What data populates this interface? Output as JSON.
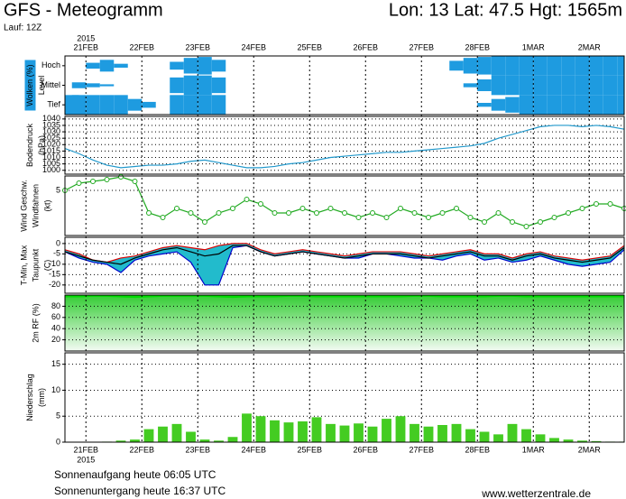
{
  "header": {
    "title": "GFS - Meteogramm",
    "location": "Lon: 13 Lat: 47.5 Hgt: 1565m",
    "run": "Lauf: 12Z"
  },
  "chart_data": {
    "type": "meteogram",
    "year": "2015",
    "x": [
      0,
      6,
      12,
      18,
      24,
      30,
      36,
      42,
      48,
      54,
      60,
      66,
      72,
      78,
      84,
      90,
      96,
      102,
      108,
      114,
      120,
      126,
      132,
      138,
      144,
      150,
      156,
      162,
      168,
      174,
      180,
      186,
      192,
      198,
      204,
      210,
      216,
      222,
      228,
      234,
      240
    ],
    "xlim": [
      0,
      240
    ],
    "xticks": [
      {
        "value": 9,
        "label": "21FEB"
      },
      {
        "value": 33,
        "label": "22FEB"
      },
      {
        "value": 57,
        "label": "23FEB"
      },
      {
        "value": 81,
        "label": "24FEB"
      },
      {
        "value": 105,
        "label": "25FEB"
      },
      {
        "value": 129,
        "label": "26FEB"
      },
      {
        "value": 153,
        "label": "27FEB"
      },
      {
        "value": 177,
        "label": "28FEB"
      },
      {
        "value": 201,
        "label": "1MAR"
      },
      {
        "value": 225,
        "label": "2MAR"
      }
    ],
    "grid": true,
    "panels": [
      {
        "type": "cloud",
        "labels": [
          {
            "text": "Wolken (%)",
            "color": "#ffffff",
            "background": "#1e9be0"
          },
          {
            "text": "Level",
            "color": "#000000"
          }
        ],
        "series": [
          {
            "name": "Hoch",
            "color": "#1e9be0",
            "values": [
              0,
              0,
              30,
              60,
              20,
              0,
              0,
              0,
              40,
              80,
              90,
              60,
              0,
              0,
              0,
              0,
              0,
              0,
              0,
              0,
              0,
              0,
              0,
              0,
              0,
              0,
              0,
              0,
              50,
              80,
              90,
              100,
              100,
              100,
              100,
              100,
              100,
              100,
              100,
              100,
              100
            ]
          },
          {
            "name": "Mittel",
            "color": "#1e9be0",
            "values": [
              0,
              30,
              20,
              10,
              0,
              0,
              0,
              0,
              80,
              100,
              100,
              80,
              0,
              0,
              0,
              0,
              0,
              0,
              0,
              0,
              0,
              0,
              0,
              0,
              0,
              0,
              0,
              0,
              0,
              20,
              60,
              100,
              100,
              100,
              100,
              100,
              100,
              100,
              100,
              100,
              100
            ]
          },
          {
            "name": "Tief",
            "color": "#1e9be0",
            "values": [
              100,
              100,
              100,
              100,
              100,
              60,
              30,
              0,
              100,
              100,
              100,
              100,
              0,
              0,
              0,
              0,
              0,
              0,
              0,
              0,
              0,
              0,
              0,
              0,
              0,
              0,
              0,
              0,
              0,
              0,
              20,
              60,
              80,
              100,
              100,
              100,
              100,
              100,
              100,
              100,
              100
            ]
          }
        ]
      },
      {
        "type": "line",
        "labels": [
          {
            "text": "Bodendruck",
            "color": "#000000"
          },
          {
            "text": "(hPa)",
            "color": "#000000"
          }
        ],
        "ylim": [
          997,
          1042
        ],
        "yticks": [
          1000,
          1005,
          1010,
          1015,
          1020,
          1025,
          1030,
          1035,
          1040
        ],
        "series": [
          {
            "color": "#2299cc",
            "values": [
              1017,
              1013,
              1008,
              1004,
              1002,
              1003,
              1004,
              1004,
              1005,
              1007,
              1008,
              1006,
              1004,
              1002,
              1002,
              1003,
              1005,
              1006,
              1008,
              1010,
              1011,
              1012,
              1013,
              1014,
              1014,
              1015,
              1016,
              1017,
              1018,
              1019,
              1021,
              1025,
              1028,
              1031,
              1034,
              1035,
              1035,
              1034,
              1035,
              1034,
              1032
            ]
          }
        ]
      },
      {
        "type": "line",
        "labels": [
          {
            "text": "Wind Geschw.",
            "color": "#00aa00"
          },
          {
            "text": "Windfahnen",
            "color": "#000000"
          },
          {
            "text": "(kt)",
            "color": "#000000"
          }
        ],
        "ylim": [
          0,
          6.6
        ],
        "yticks": [
          5
        ],
        "markers": true,
        "series": [
          {
            "color": "#22aa22",
            "values": [
              5.0,
              5.8,
              6.0,
              6.2,
              6.5,
              6.0,
              2.5,
              2.0,
              3.0,
              2.5,
              1.5,
              2.5,
              3.0,
              4.0,
              3.5,
              2.5,
              2.5,
              3.0,
              2.5,
              3.0,
              2.5,
              2.0,
              2.5,
              2.0,
              3.0,
              2.5,
              2.0,
              2.5,
              3.0,
              2.0,
              1.5,
              2.5,
              1.5,
              1.0,
              1.5,
              2.0,
              2.5,
              3.0,
              3.5,
              3.5,
              3.0
            ]
          }
        ]
      },
      {
        "type": "band",
        "labels": [
          {
            "text": "T-Min, Max",
            "color": "#0000cc"
          },
          {
            "text": "Taupunkt",
            "color": "#000000"
          },
          {
            "text": "(C)",
            "color": "#000000"
          }
        ],
        "ylim": [
          -24,
          3
        ],
        "yticks": [
          0,
          -5,
          -10,
          -15,
          -20
        ],
        "fill": "#22bbcc",
        "series": [
          {
            "color": "#dd0000",
            "values": [
              -3,
              -5,
              -8,
              -9,
              -7,
              -6,
              -4,
              -2,
              -1,
              -2,
              -3,
              -1,
              0,
              0,
              -3,
              -5,
              -4,
              -3,
              -4,
              -5,
              -6,
              -5,
              -4,
              -4,
              -4,
              -5,
              -6,
              -5,
              -4,
              -3,
              -5,
              -5,
              -7,
              -5,
              -4,
              -6,
              -7,
              -8,
              -7,
              -6,
              -1
            ]
          },
          {
            "color": "#0000cc",
            "values": [
              -4,
              -7,
              -9,
              -10,
              -14,
              -8,
              -6,
              -5,
              -4,
              -9,
              -20,
              -20,
              -2,
              -1,
              -4,
              -6,
              -5,
              -4,
              -5,
              -6,
              -7,
              -7,
              -5,
              -5,
              -6,
              -7,
              -7,
              -8,
              -6,
              -5,
              -8,
              -7,
              -9,
              -8,
              -6,
              -8,
              -10,
              -11,
              -10,
              -9,
              -3
            ]
          },
          {
            "color": "#000000",
            "values": [
              -4,
              -6,
              -8,
              -9,
              -10,
              -7,
              -5,
              -3,
              -2,
              -4,
              -6,
              -5,
              -1,
              -1,
              -4,
              -6,
              -5,
              -4,
              -5,
              -6,
              -7,
              -6,
              -5,
              -5,
              -5,
              -6,
              -7,
              -6,
              -5,
              -4,
              -6,
              -6,
              -8,
              -6,
              -5,
              -7,
              -8,
              -9,
              -8,
              -7,
              -2
            ]
          }
        ]
      },
      {
        "type": "area",
        "labels": [
          {
            "text": "2m RF (%)",
            "color": "#00aa00"
          }
        ],
        "ylim": [
          0,
          100
        ],
        "yticks": [
          20,
          40,
          60,
          80
        ],
        "series": [
          {
            "color": "#00dd00",
            "values": [
              97,
              97,
              98,
              98,
              97,
              96,
              97,
              98,
              98,
              98,
              98,
              97,
              96,
              97,
              97,
              97,
              98,
              98,
              97,
              97,
              97,
              97,
              97,
              97,
              97,
              98,
              98,
              97,
              97,
              97,
              97,
              98,
              98,
              97,
              97,
              97,
              97,
              97,
              97,
              97,
              97
            ]
          }
        ]
      },
      {
        "type": "bar",
        "labels": [
          {
            "text": "Niederschlag",
            "color": "#000000"
          },
          {
            "text": "(mm)",
            "color": "#000000"
          }
        ],
        "ylim": [
          0,
          17.2
        ],
        "yticks": [
          0,
          5,
          10,
          15
        ],
        "series": [
          {
            "color": "#44cc22",
            "values": [
              0,
              0,
              0,
              0.1,
              0.3,
              0.5,
              2.5,
              3.0,
              3.5,
              2.0,
              0.5,
              0.3,
              1.0,
              5.5,
              5.0,
              4.2,
              3.8,
              4.0,
              4.8,
              3.5,
              3.2,
              3.6,
              3.0,
              4.5,
              5.0,
              3.5,
              3.0,
              3.3,
              3.5,
              2.5,
              2.0,
              1.5,
              3.5,
              2.5,
              1.5,
              0.8,
              0.5,
              0.3,
              0.2,
              0.1,
              0.1
            ]
          }
        ]
      }
    ]
  },
  "footer": {
    "sunrise": "Sonnenaufgang heute 06:05 UTC",
    "sunset": "Sonnenuntergang heute 16:37 UTC",
    "source": "www.wetterzentrale.de"
  }
}
